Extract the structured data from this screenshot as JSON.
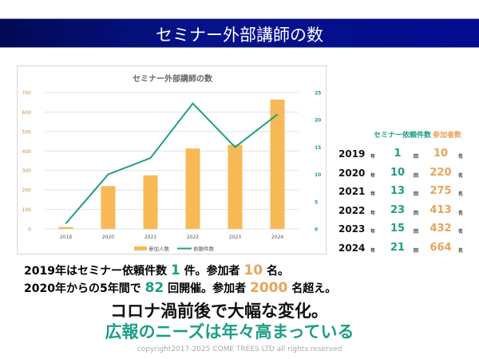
{
  "header": {
    "title": "セミナー外部講師の数"
  },
  "chart_data": {
    "type": "bar+line",
    "title": "セミナー外部講師の数",
    "categories": [
      "2019",
      "2020",
      "2021",
      "2022",
      "2023",
      "2024"
    ],
    "series": [
      {
        "name": "参加人数",
        "type": "bar",
        "axis": "left",
        "color": "#f7b955",
        "values": [
          10,
          220,
          275,
          413,
          432,
          664
        ]
      },
      {
        "name": "依頼件数",
        "type": "line",
        "axis": "right",
        "color": "#1e9e86",
        "values": [
          1,
          10,
          13,
          23,
          15,
          21
        ]
      }
    ],
    "left_axis": {
      "ylim": [
        0,
        700
      ],
      "ticks": [
        "0",
        "100",
        "200",
        "300",
        "400",
        "500",
        "600",
        "700"
      ],
      "color": "#c98a4a"
    },
    "right_axis": {
      "ylim": [
        0,
        25
      ],
      "ticks": [
        "0",
        "5",
        "10",
        "15",
        "20",
        "25"
      ],
      "color": "#1e9e86"
    },
    "grid": true,
    "legend": "bottom"
  },
  "table": {
    "headers": {
      "count": "セミナー依頼件数",
      "people": "参加者数"
    },
    "units": {
      "year": "年",
      "count": "回",
      "people": "名"
    },
    "rows": [
      {
        "year": "2019",
        "count": "1",
        "people": "10"
      },
      {
        "year": "2020",
        "count": "10",
        "people": "220"
      },
      {
        "year": "2021",
        "count": "13",
        "people": "275"
      },
      {
        "year": "2022",
        "count": "23",
        "people": "413"
      },
      {
        "year": "2023",
        "count": "15",
        "people": "432"
      },
      {
        "year": "2024",
        "count": "21",
        "people": "664"
      }
    ]
  },
  "summary": {
    "line1": {
      "a": "2019年はセミナー依頼件数",
      "n1": "1",
      "b": "件。参加者",
      "n2": "10",
      "c": "名。"
    },
    "line2": {
      "a": "2020年からの5年間で",
      "n1": "82",
      "b": "回開催。参加者",
      "n2": "2000",
      "c": "名超え。"
    },
    "headline": "コロナ渦前後で大幅な変化。",
    "subheadline": "広報のニーズは年々高まっている"
  },
  "footer": {
    "copyright": "copyright2017-2025 COME TREES LTD all rights reserved"
  }
}
